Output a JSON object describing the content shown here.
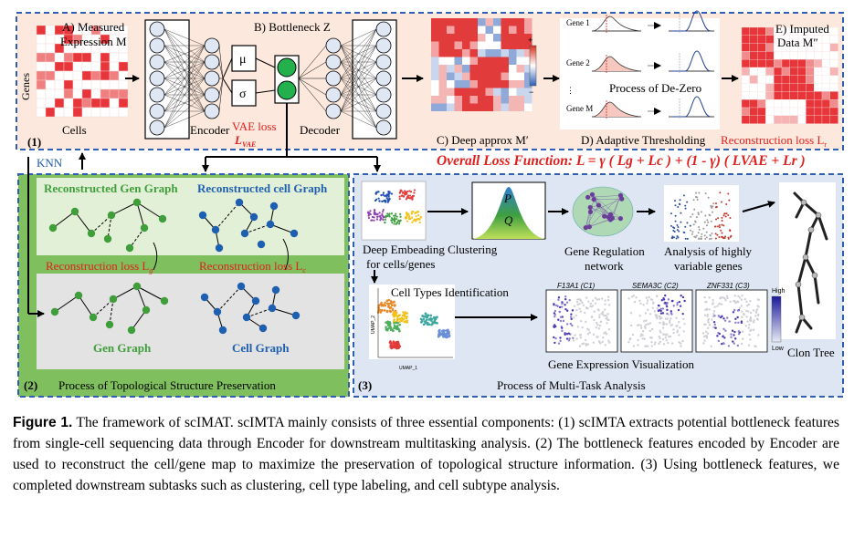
{
  "panel1": {
    "genes_label": "Genes",
    "cells_label": "Cells",
    "measured_label": "A) Measured",
    "expression_label": "Expression M",
    "bottleneck_label": "B) Bottleneck Z",
    "mu_label": "μ",
    "sigma_label": "σ",
    "encoder_label": "Encoder",
    "decoder_label": "Decoder",
    "vae_loss_label": "VAE loss",
    "vae_loss_symbol": "L",
    "vae_loss_sub": "VAE",
    "deep_approx_label": "C) Deep approx M′",
    "colorbar_plus": "+",
    "colorbar_minus": "−",
    "gene_rows": [
      "Gene 1",
      "Gene 2",
      "⋮",
      "Gene M"
    ],
    "de_zero_label": "Process of De-Zero",
    "adaptive_label": "D) Adaptive Thresholding",
    "imputed_label": "E) Imputed",
    "imputed_data_label": "Data M″",
    "recon_loss_label": "Reconstruction loss L",
    "recon_loss_sub": "r",
    "section_number": "(1)",
    "overall_loss": "Overall Loss Function: L = γ ( Lg + Lc ) + (1 - γ) ( LVAE + Lr )"
  },
  "panel2": {
    "knn_label": "KNN",
    "recon_gen_graph": "Reconstructed  Gen Graph",
    "recon_cell_graph": "Reconstructed  cell Graph",
    "recon_loss_g": "Reconstruction loss L",
    "recon_loss_g_sub": "g",
    "recon_loss_c": "Reconstruction loss L",
    "recon_loss_c_sub": "c",
    "gen_graph": "Gen Graph",
    "cell_graph": "Cell Graph",
    "section_number": "(2)",
    "process_label": "Process of  Topological Structure Preservation"
  },
  "panel3": {
    "dec_label_1": "Deep Embeading Clustering",
    "dec_label_2": "for cells/genes",
    "p_label": "P",
    "q_label": "Q",
    "grn_label_1": "Gene Regulation",
    "grn_label_2": "network",
    "hvg_label_1": "Analysis of highly",
    "hvg_label_2": "variable genes",
    "cell_types_label": "Cell Types Identification",
    "umap_x": "UMAP_1",
    "umap_y": "UMAP_2",
    "gene_titles": [
      "F13A1 (C1)",
      "SEMA3C (C2)",
      "ZNF331 (C3)"
    ],
    "high_label": "High",
    "low_label": "Low",
    "gene_expr_label": "Gene Expression Visualization",
    "clon_tree_label": "Clon Tree",
    "section_number": "(3)",
    "process_label": "Process of  Multi-Task Analysis"
  },
  "caption": {
    "figure_label": "Figure 1.",
    "text": " The framework of scIMAT. scIMTA mainly consists of three essential components: (1) scIMTA extracts potential bottleneck features from single-cell sequencing data through Encoder for downstream multitasking analysis. (2) The bottleneck features encoded by Encoder are used to reconstruct the cell/gene map to maximize the preservation of topological structure information. (3) Using bottleneck features, we completed downstream subtasks such as clustering, cell type labeling, and cell subtype analysis."
  },
  "colors": {
    "panel1_bg": "#fce8dc",
    "panel2_bg": "#7fbf5e",
    "panel3_bg": "#dde6f2",
    "dash_blue": "#2f5fb3",
    "loss_red": "#e0201c",
    "gen_green": "#3f9e3a",
    "cell_blue": "#1f5fb0",
    "heat_red": "#e8353a"
  }
}
